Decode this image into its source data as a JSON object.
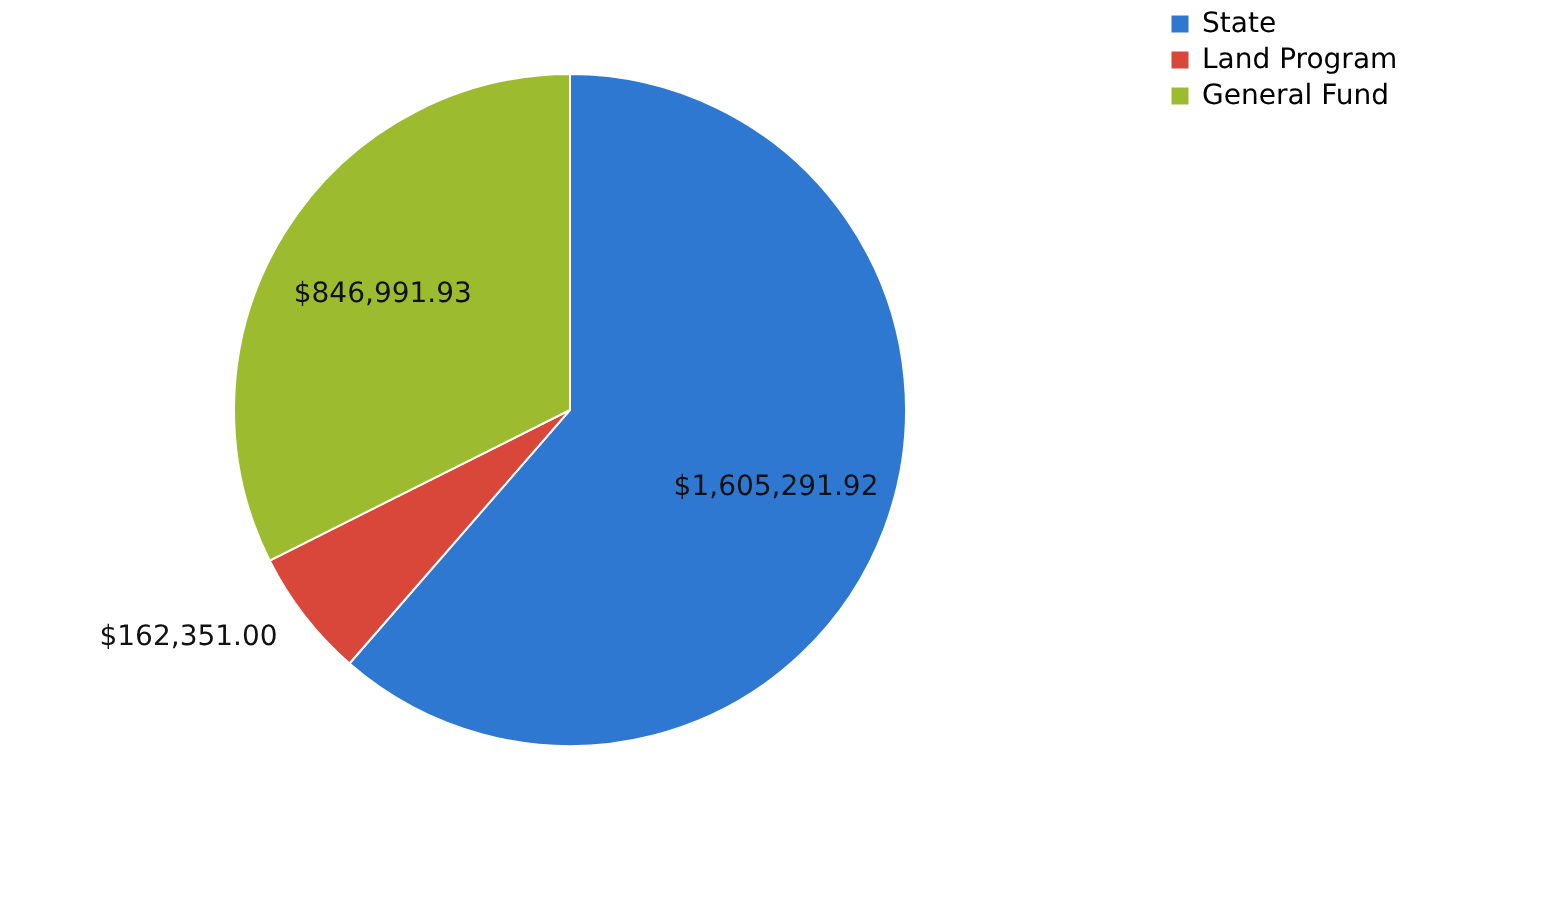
{
  "chart_data": {
    "type": "pie",
    "categories": [
      "State",
      "Land Program",
      "General Fund"
    ],
    "values": [
      1605291.92,
      162351.0,
      846991.93
    ],
    "value_labels": [
      "$1,605,291.92",
      "$162,351.00",
      "$846,991.93"
    ],
    "colors": [
      "#2e78d2",
      "#d9473b",
      "#9dbb2e"
    ],
    "legend": "right"
  }
}
